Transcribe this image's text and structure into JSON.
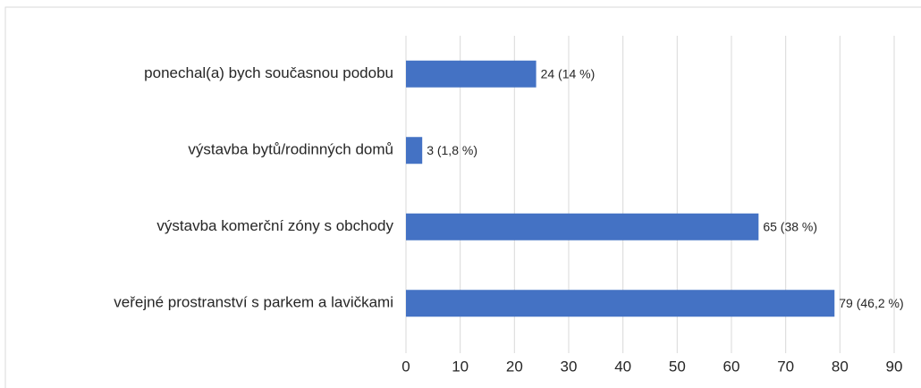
{
  "chart_data": {
    "type": "hbar",
    "categories": [
      "ponechal(a) bych současnou podobu",
      "výstavba bytů/rodinných domů",
      "výstavba komerční zóny s obchody",
      "veřejné prostranství s parkem a lavičkami"
    ],
    "values": [
      24,
      3,
      65,
      79
    ],
    "value_labels": [
      "24 (14 %)",
      "3 (1,8 %)",
      "65 (38 %)",
      "79 (46,2 %)"
    ],
    "color": "#4472c4",
    "xlim": [
      0,
      90
    ],
    "xticks": [
      0,
      10,
      20,
      30,
      40,
      50,
      60,
      70,
      80,
      90
    ],
    "grid": true
  }
}
